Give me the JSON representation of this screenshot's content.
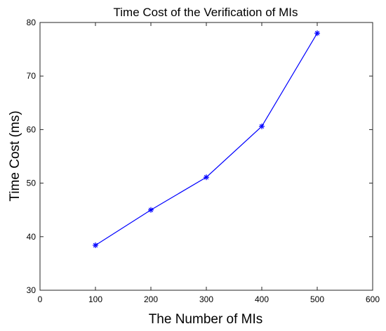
{
  "chart_data": {
    "type": "line",
    "title": "Time Cost of the Verification of MIs",
    "xlabel": "The Number of MIs",
    "ylabel": "Time Cost (ms)",
    "xlim": [
      0,
      600
    ],
    "ylim": [
      30,
      80
    ],
    "xticks": [
      "0",
      "100",
      "200",
      "300",
      "400",
      "500",
      "600"
    ],
    "yticks": [
      "30",
      "40",
      "50",
      "60",
      "70",
      "80"
    ],
    "grid": false,
    "series": [
      {
        "x": [
          100,
          200,
          300,
          400,
          500
        ],
        "y": [
          38.4,
          45.0,
          51.1,
          60.6,
          78.0
        ],
        "color": "#0000ff",
        "marker": "asterisk"
      }
    ]
  }
}
